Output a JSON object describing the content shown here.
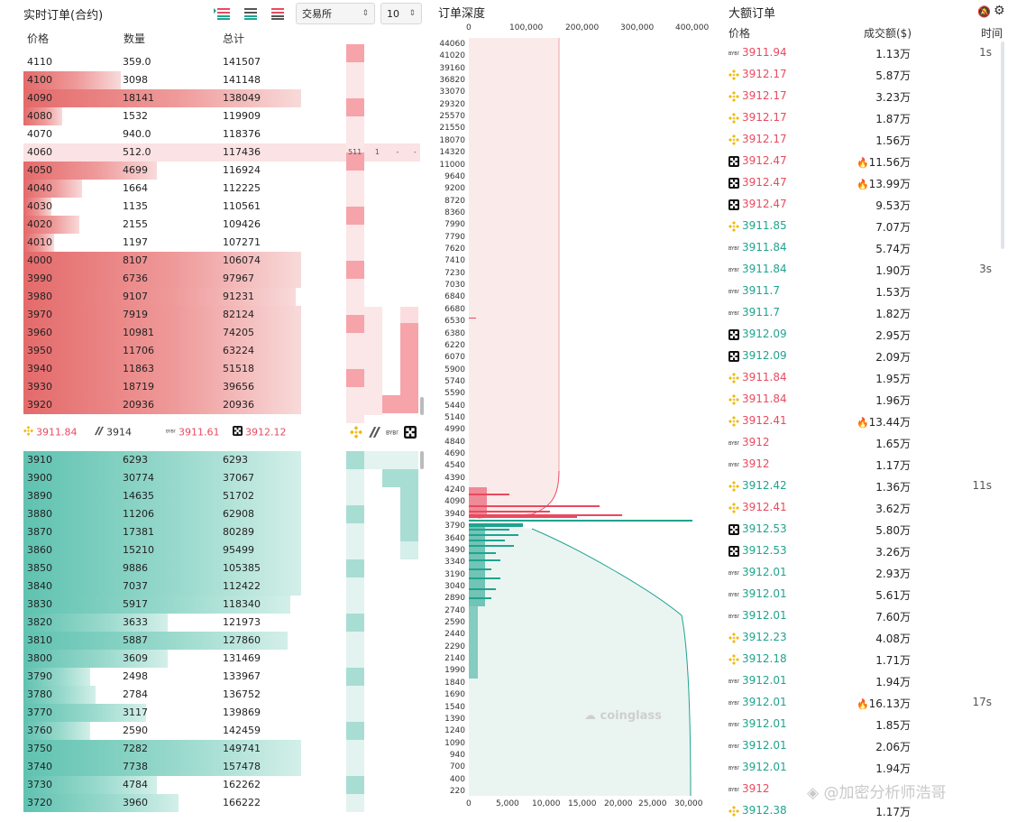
{
  "orderbook": {
    "title": "实时订单(合约)",
    "exchange_select": "交易所",
    "depth_select": "10",
    "col_price": "价格",
    "col_qty": "数量",
    "col_total": "总计",
    "partial_top": "",
    "asks": [
      {
        "price": "4110",
        "qty": "359.0",
        "total": "141507",
        "pct": 0
      },
      {
        "price": "4100",
        "qty": "3098",
        "total": "141148",
        "pct": 35
      },
      {
        "price": "4090",
        "qty": "18141",
        "total": "138049",
        "pct": 100
      },
      {
        "price": "4080",
        "qty": "1532",
        "total": "119909",
        "pct": 14
      },
      {
        "price": "4070",
        "qty": "940.0",
        "total": "118376",
        "pct": 0
      },
      {
        "price": "4060",
        "qty": "512.0",
        "total": "117436",
        "pct": 100,
        "highlight": true
      },
      {
        "price": "4050",
        "qty": "4699",
        "total": "116924",
        "pct": 48
      },
      {
        "price": "4040",
        "qty": "1664",
        "total": "112225",
        "pct": 21
      },
      {
        "price": "4030",
        "qty": "1135",
        "total": "110561",
        "pct": 10
      },
      {
        "price": "4020",
        "qty": "2155",
        "total": "109426",
        "pct": 20
      },
      {
        "price": "4010",
        "qty": "1197",
        "total": "107271",
        "pct": 11
      },
      {
        "price": "4000",
        "qty": "8107",
        "total": "106074",
        "pct": 100
      },
      {
        "price": "3990",
        "qty": "6736",
        "total": "97967",
        "pct": 100
      },
      {
        "price": "3980",
        "qty": "9107",
        "total": "91231",
        "pct": 98
      },
      {
        "price": "3970",
        "qty": "7919",
        "total": "82124",
        "pct": 100
      },
      {
        "price": "3960",
        "qty": "10981",
        "total": "74205",
        "pct": 100
      },
      {
        "price": "3950",
        "qty": "11706",
        "total": "63224",
        "pct": 100
      },
      {
        "price": "3940",
        "qty": "11863",
        "total": "51518",
        "pct": 100
      },
      {
        "price": "3930",
        "qty": "18719",
        "total": "39656",
        "pct": 100
      },
      {
        "price": "3920",
        "qty": "20936",
        "total": "20936",
        "pct": 100
      }
    ],
    "highlight_row": {
      "v1": "511",
      "v2": "1",
      "v3": "-",
      "v4": "-"
    },
    "exchange_prices": [
      {
        "icon": "binance-icon",
        "price": "3911.84",
        "color": "#e84a5f"
      },
      {
        "icon": "exchange2-icon",
        "price": "3914",
        "color": "#333333"
      },
      {
        "icon": "bybit-icon",
        "price": "3911.61",
        "color": "#e84a5f"
      },
      {
        "icon": "okx-icon",
        "price": "3912.12",
        "color": "#e84a5f"
      }
    ],
    "bids": [
      {
        "price": "3910",
        "qty": "6293",
        "total": "6293",
        "pct": 100
      },
      {
        "price": "3900",
        "qty": "30774",
        "total": "37067",
        "pct": 100
      },
      {
        "price": "3890",
        "qty": "14635",
        "total": "51702",
        "pct": 100
      },
      {
        "price": "3880",
        "qty": "11206",
        "total": "62908",
        "pct": 100
      },
      {
        "price": "3870",
        "qty": "17381",
        "total": "80289",
        "pct": 100
      },
      {
        "price": "3860",
        "qty": "15210",
        "total": "95499",
        "pct": 100
      },
      {
        "price": "3850",
        "qty": "9886",
        "total": "105385",
        "pct": 100
      },
      {
        "price": "3840",
        "qty": "7037",
        "total": "112422",
        "pct": 100
      },
      {
        "price": "3830",
        "qty": "5917",
        "total": "118340",
        "pct": 96
      },
      {
        "price": "3820",
        "qty": "3633",
        "total": "121973",
        "pct": 52
      },
      {
        "price": "3810",
        "qty": "5887",
        "total": "127860",
        "pct": 95
      },
      {
        "price": "3800",
        "qty": "3609",
        "total": "131469",
        "pct": 52
      },
      {
        "price": "3790",
        "qty": "2498",
        "total": "133967",
        "pct": 24
      },
      {
        "price": "3780",
        "qty": "2784",
        "total": "136752",
        "pct": 26
      },
      {
        "price": "3770",
        "qty": "3117",
        "total": "139869",
        "pct": 44
      },
      {
        "price": "3760",
        "qty": "2590",
        "total": "142459",
        "pct": 24
      },
      {
        "price": "3750",
        "qty": "7282",
        "total": "149741",
        "pct": 100
      },
      {
        "price": "3740",
        "qty": "7738",
        "total": "157478",
        "pct": 100
      },
      {
        "price": "3730",
        "qty": "4784",
        "total": "162262",
        "pct": 48
      },
      {
        "price": "3720",
        "qty": "3960",
        "total": "166222",
        "pct": 56
      }
    ]
  },
  "depth": {
    "title": "订单深度",
    "top_ticks": [
      "0",
      "100,000",
      "200,000",
      "300,000",
      "400,000"
    ],
    "bottom_ticks": [
      "0",
      "5,000",
      "10,000",
      "15,000",
      "20,000",
      "25,000",
      "30,000"
    ],
    "y_labels": [
      "44060",
      "41020",
      "39160",
      "36820",
      "33070",
      "29320",
      "25570",
      "21550",
      "18070",
      "14320",
      "11000",
      "9640",
      "9200",
      "8720",
      "8360",
      "7990",
      "7790",
      "7620",
      "7410",
      "7230",
      "7030",
      "6840",
      "6680",
      "6530",
      "6380",
      "6220",
      "6070",
      "5900",
      "5740",
      "5590",
      "5440",
      "5140",
      "4990",
      "4840",
      "4690",
      "4540",
      "4390",
      "4240",
      "4090",
      "3940",
      "3790",
      "3640",
      "3490",
      "3340",
      "3190",
      "3040",
      "2890",
      "2740",
      "2590",
      "2440",
      "2290",
      "2140",
      "1990",
      "1840",
      "1690",
      "1540",
      "1390",
      "1240",
      "1090",
      "940",
      "700",
      "400",
      "220"
    ],
    "watermark": "coinglass"
  },
  "trades": {
    "title": "大额订单",
    "col_price": "价格",
    "col_amount": "成交额($)",
    "col_time": "时间",
    "rows": [
      {
        "icon": "bybit",
        "price": "3911.94",
        "color": "red",
        "amount": "1.13万",
        "fire": false,
        "time": "1s"
      },
      {
        "icon": "binance",
        "price": "3912.17",
        "color": "red",
        "amount": "5.87万",
        "fire": false,
        "time": ""
      },
      {
        "icon": "binance",
        "price": "3912.17",
        "color": "red",
        "amount": "3.23万",
        "fire": false,
        "time": ""
      },
      {
        "icon": "binance",
        "price": "3912.17",
        "color": "red",
        "amount": "1.87万",
        "fire": false,
        "time": ""
      },
      {
        "icon": "binance",
        "price": "3912.17",
        "color": "red",
        "amount": "1.56万",
        "fire": false,
        "time": ""
      },
      {
        "icon": "okx",
        "price": "3912.47",
        "color": "red",
        "amount": "11.56万",
        "fire": true,
        "time": ""
      },
      {
        "icon": "okx",
        "price": "3912.47",
        "color": "red",
        "amount": "13.99万",
        "fire": true,
        "time": ""
      },
      {
        "icon": "okx",
        "price": "3912.47",
        "color": "red",
        "amount": "9.53万",
        "fire": false,
        "time": ""
      },
      {
        "icon": "binance",
        "price": "3911.85",
        "color": "green",
        "amount": "7.07万",
        "fire": false,
        "time": ""
      },
      {
        "icon": "bybit",
        "price": "3911.84",
        "color": "green",
        "amount": "5.74万",
        "fire": false,
        "time": ""
      },
      {
        "icon": "bybit",
        "price": "3911.84",
        "color": "green",
        "amount": "1.90万",
        "fire": false,
        "time": "3s"
      },
      {
        "icon": "bybit",
        "price": "3911.7",
        "color": "green",
        "amount": "1.53万",
        "fire": false,
        "time": ""
      },
      {
        "icon": "bybit",
        "price": "3911.7",
        "color": "green",
        "amount": "1.82万",
        "fire": false,
        "time": ""
      },
      {
        "icon": "okx",
        "price": "3912.09",
        "color": "green",
        "amount": "2.95万",
        "fire": false,
        "time": ""
      },
      {
        "icon": "okx",
        "price": "3912.09",
        "color": "green",
        "amount": "2.09万",
        "fire": false,
        "time": ""
      },
      {
        "icon": "binance",
        "price": "3911.84",
        "color": "red",
        "amount": "1.95万",
        "fire": false,
        "time": ""
      },
      {
        "icon": "binance",
        "price": "3911.84",
        "color": "red",
        "amount": "1.96万",
        "fire": false,
        "time": ""
      },
      {
        "icon": "binance",
        "price": "3912.41",
        "color": "red",
        "amount": "13.44万",
        "fire": true,
        "time": ""
      },
      {
        "icon": "bybit",
        "price": "3912",
        "color": "red",
        "amount": "1.65万",
        "fire": false,
        "time": ""
      },
      {
        "icon": "bybit",
        "price": "3912",
        "color": "red",
        "amount": "1.17万",
        "fire": false,
        "time": ""
      },
      {
        "icon": "binance",
        "price": "3912.42",
        "color": "green",
        "amount": "1.36万",
        "fire": false,
        "time": "11s"
      },
      {
        "icon": "binance",
        "price": "3912.41",
        "color": "red",
        "amount": "3.62万",
        "fire": false,
        "time": ""
      },
      {
        "icon": "okx",
        "price": "3912.53",
        "color": "green",
        "amount": "5.80万",
        "fire": false,
        "time": ""
      },
      {
        "icon": "okx",
        "price": "3912.53",
        "color": "green",
        "amount": "3.26万",
        "fire": false,
        "time": ""
      },
      {
        "icon": "bybit",
        "price": "3912.01",
        "color": "green",
        "amount": "2.93万",
        "fire": false,
        "time": ""
      },
      {
        "icon": "bybit",
        "price": "3912.01",
        "color": "green",
        "amount": "5.61万",
        "fire": false,
        "time": ""
      },
      {
        "icon": "bybit",
        "price": "3912.01",
        "color": "green",
        "amount": "7.60万",
        "fire": false,
        "time": ""
      },
      {
        "icon": "binance",
        "price": "3912.23",
        "color": "green",
        "amount": "4.08万",
        "fire": false,
        "time": ""
      },
      {
        "icon": "binance",
        "price": "3912.18",
        "color": "green",
        "amount": "1.71万",
        "fire": false,
        "time": ""
      },
      {
        "icon": "bybit",
        "price": "3912.01",
        "color": "green",
        "amount": "1.94万",
        "fire": false,
        "time": ""
      },
      {
        "icon": "bybit",
        "price": "3912.01",
        "color": "green",
        "amount": "16.13万",
        "fire": true,
        "time": "17s"
      },
      {
        "icon": "bybit",
        "price": "3912.01",
        "color": "green",
        "amount": "1.85万",
        "fire": false,
        "time": ""
      },
      {
        "icon": "bybit",
        "price": "3912.01",
        "color": "green",
        "amount": "2.06万",
        "fire": false,
        "time": ""
      },
      {
        "icon": "bybit",
        "price": "3912.01",
        "color": "green",
        "amount": "1.94万",
        "fire": false,
        "time": ""
      },
      {
        "icon": "bybit",
        "price": "3912",
        "color": "red",
        "amount": "",
        "fire": false,
        "time": ""
      },
      {
        "icon": "binance",
        "price": "3912.38",
        "color": "green",
        "amount": "1.17万",
        "fire": false,
        "time": ""
      }
    ]
  },
  "watermark_text": "@加密分析师浩哥",
  "colors": {
    "ask": "#e84a5f",
    "bid": "#20a38e",
    "ask_bar": "#ef9a9a",
    "bid_bar": "#98d9cc"
  }
}
